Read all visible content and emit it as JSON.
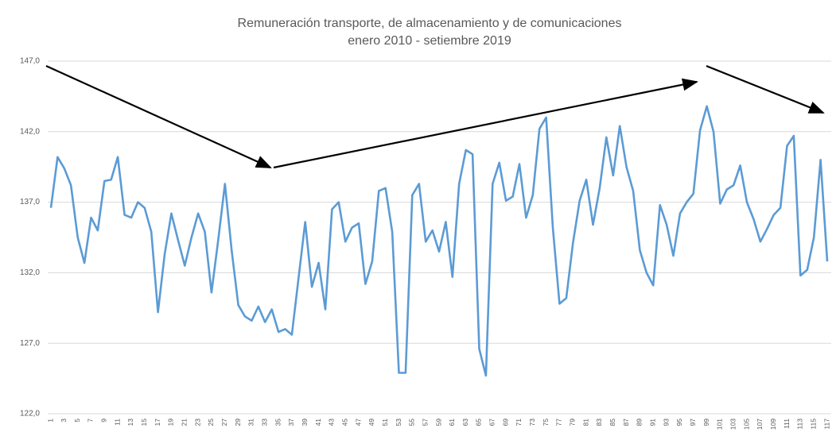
{
  "chart_data": {
    "type": "line",
    "title": "Remuneración transporte, de almacenamiento y de comunicaciones",
    "subtitle": "enero 2010 - setiembre 2019",
    "categories": [
      1,
      null,
      3,
      null,
      5,
      null,
      7,
      null,
      9,
      null,
      11,
      null,
      13,
      null,
      15,
      null,
      17,
      null,
      19,
      null,
      21,
      null,
      23,
      null,
      25,
      null,
      27,
      null,
      29,
      null,
      31,
      null,
      33,
      null,
      35,
      null,
      37,
      null,
      39,
      null,
      41,
      null,
      43,
      null,
      45,
      null,
      47,
      null,
      49,
      null,
      51,
      null,
      53,
      null,
      55,
      null,
      57,
      null,
      59,
      null,
      61,
      null,
      63,
      null,
      65,
      null,
      67,
      null,
      69,
      null,
      71,
      null,
      73,
      null,
      75,
      null,
      77,
      null,
      79,
      null,
      81,
      null,
      83,
      null,
      85,
      null,
      87,
      null,
      89,
      null,
      91,
      null,
      93,
      null,
      95,
      null,
      97,
      null,
      99,
      null,
      101,
      null,
      103,
      null,
      105,
      null,
      107,
      null,
      109,
      null,
      111,
      null,
      113,
      null,
      115,
      null,
      117
    ],
    "series": [
      {
        "name": "Remuneración",
        "color": "#5b9bd5",
        "values": [
          136.6,
          140.2,
          139.4,
          138.2,
          134.5,
          132.7,
          135.9,
          135.0,
          138.5,
          138.6,
          140.2,
          136.1,
          135.9,
          137.0,
          136.6,
          134.9,
          129.2,
          133.3,
          136.2,
          134.3,
          132.5,
          134.5,
          136.2,
          134.9,
          130.6,
          134.3,
          138.3,
          133.6,
          129.7,
          128.9,
          128.6,
          129.6,
          128.5,
          129.4,
          127.8,
          128.0,
          127.6,
          131.6,
          135.6,
          131.0,
          132.7,
          129.4,
          136.5,
          137.0,
          134.2,
          135.2,
          135.5,
          131.2,
          132.8,
          137.8,
          138.0,
          134.9,
          124.9,
          124.9,
          137.5,
          138.3,
          134.2,
          135.0,
          133.5,
          135.6,
          131.7,
          138.3,
          140.7,
          140.4,
          126.6,
          124.7,
          138.3,
          139.8,
          137.1,
          137.4,
          139.7,
          135.9,
          137.5,
          142.2,
          143.0,
          135.2,
          129.8,
          130.2,
          134.1,
          137.1,
          138.6,
          135.4,
          138.0,
          141.6,
          138.9,
          142.4,
          139.5,
          137.8,
          133.6,
          132.0,
          131.1,
          136.8,
          135.4,
          133.2,
          136.2,
          137.0,
          137.6,
          142.1,
          143.8,
          142.0,
          136.9,
          137.9,
          138.2,
          139.6,
          137.0,
          135.8,
          134.2,
          135.1,
          136.1,
          136.6,
          141.0,
          141.7,
          131.8,
          132.2,
          134.5,
          140.0,
          132.8
        ]
      }
    ],
    "ylim": [
      122,
      147
    ],
    "yticks": [
      {
        "value": 122,
        "label": "122,0"
      },
      {
        "value": 127,
        "label": "127,0"
      },
      {
        "value": 132,
        "label": "132,0"
      },
      {
        "value": 137,
        "label": "137,0"
      },
      {
        "value": 142,
        "label": "142,0"
      },
      {
        "value": 147,
        "label": "147,0"
      }
    ],
    "grid": true
  }
}
